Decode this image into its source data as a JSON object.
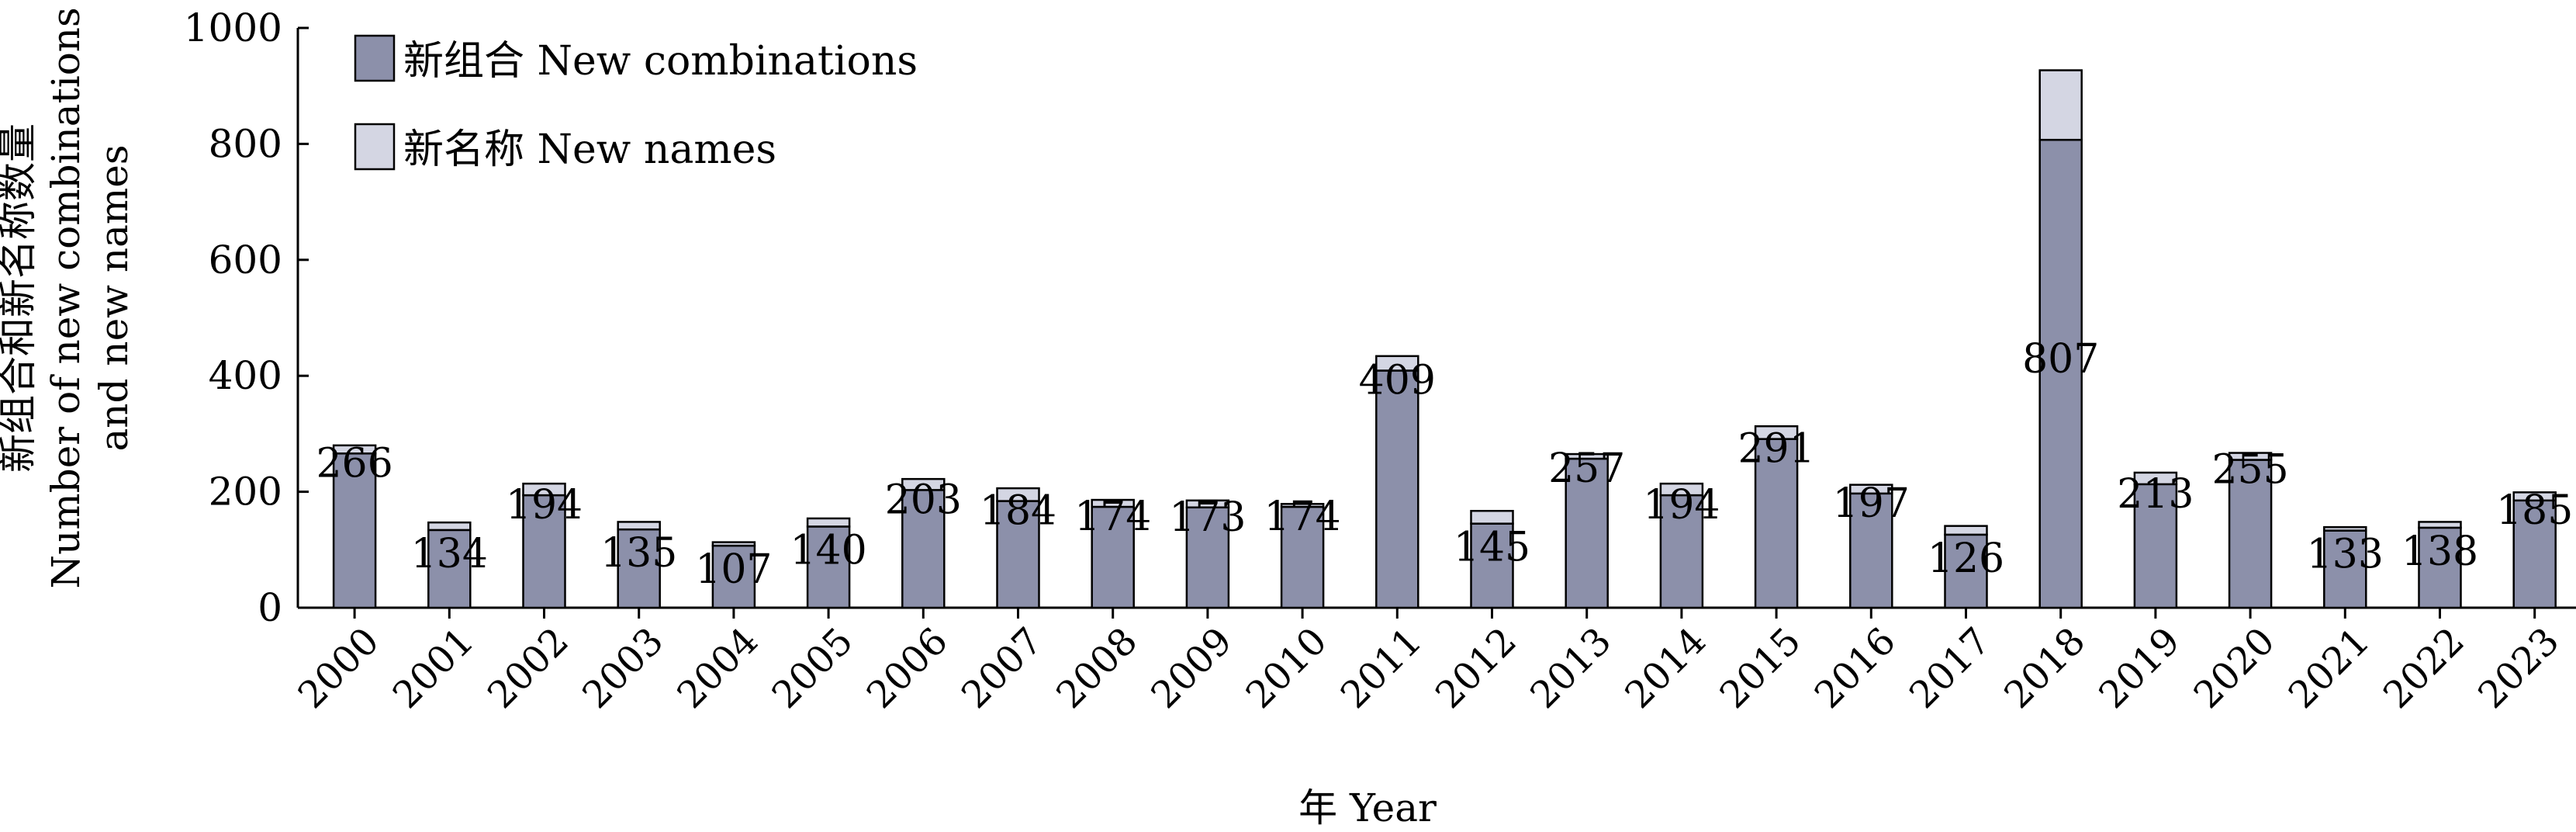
{
  "chart_data": {
    "type": "bar",
    "stacked": true,
    "xlabel": "年 Year",
    "ylabel_lines": [
      "新组合和新名称数量",
      "Number of new combinations",
      "and new names"
    ],
    "ylim": [
      0,
      1000
    ],
    "yticks": [
      0,
      200,
      400,
      600,
      800,
      1000
    ],
    "grid": false,
    "legend_position": "top-left",
    "categories": [
      "2000",
      "2001",
      "2002",
      "2003",
      "2004",
      "2005",
      "2006",
      "2007",
      "2008",
      "2009",
      "2010",
      "2011",
      "2012",
      "2013",
      "2014",
      "2015",
      "2016",
      "2017",
      "2018",
      "2019",
      "2020",
      "2021",
      "2022",
      "2023"
    ],
    "series": [
      {
        "name": "新组合 New combinations",
        "color": "#8c90aa",
        "values": [
          266,
          134,
          194,
          135,
          107,
          140,
          203,
          184,
          174,
          173,
          174,
          409,
          145,
          257,
          194,
          291,
          197,
          126,
          807,
          213,
          255,
          133,
          138,
          185
        ],
        "labeled": true
      },
      {
        "name": "新名称 New names",
        "color": "#d4d6e3",
        "values": [
          14,
          13,
          20,
          13,
          6,
          14,
          19,
          22,
          12,
          12,
          5,
          25,
          22,
          8,
          20,
          22,
          15,
          15,
          120,
          20,
          12,
          6,
          10,
          14
        ],
        "labeled": false
      }
    ]
  }
}
